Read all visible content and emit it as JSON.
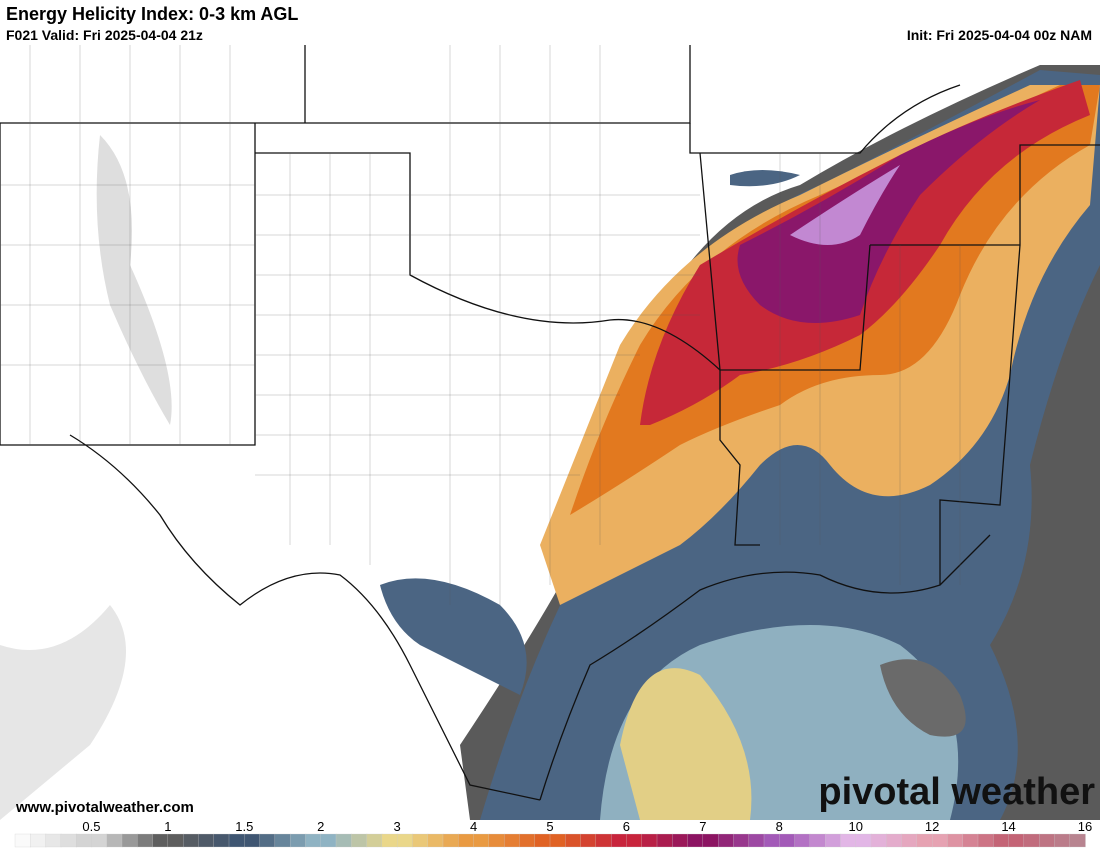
{
  "header": {
    "title": "Energy Helicity Index: 0-3 km AGL",
    "valid": "F021 Valid: Fri 2025-04-04 21z",
    "init": "Init: Fri 2025-04-04 00z NAM"
  },
  "website": "www.pivotalweather.com",
  "watermark": "pivotal weather",
  "colorbar": {
    "ticks": [
      0.5,
      1,
      1.5,
      2,
      3,
      4,
      5,
      6,
      7,
      8,
      10,
      12,
      14,
      16
    ],
    "stops": [
      "#fafafa",
      "#d4d4d4",
      "#5e5e5e",
      "#3f5672",
      "#8fb3c3",
      "#ead78a",
      "#e99a42",
      "#e06224",
      "#c8243c",
      "#8c1462",
      "#a35ab8",
      "#e2b6e6",
      "#e6a2b2",
      "#c46476",
      "#b88490",
      "#e2c2c8"
    ]
  }
}
